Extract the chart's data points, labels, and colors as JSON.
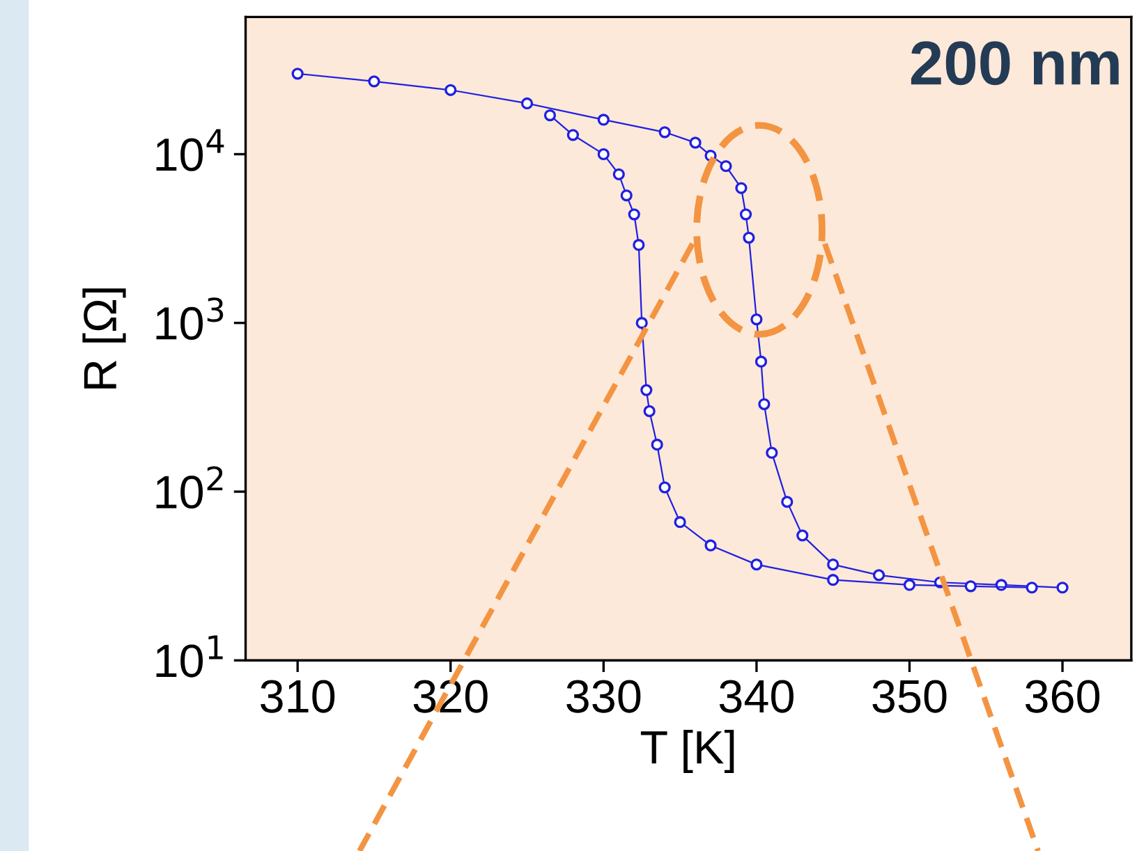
{
  "chart_data": {
    "type": "line",
    "xlabel": "T [K]",
    "ylabel": "R [Ω]",
    "annotations": [
      "200 nm"
    ],
    "log": "y",
    "xlim": [
      306.6,
      364.5
    ],
    "ylim": [
      10,
      65000
    ],
    "xticks": [
      310,
      320,
      330,
      340,
      350,
      360
    ],
    "yticks": [
      {
        "value": 10,
        "label": "10$^{1}$"
      },
      {
        "value": 100,
        "label": "10$^{2}$"
      },
      {
        "value": 1000,
        "label": "10$^{3}$"
      },
      {
        "value": 10000,
        "label": "10$^{4}$"
      }
    ],
    "marker": "circle",
    "line_style": "solid",
    "grid": false,
    "legend": false,
    "series": [
      {
        "color": "#2020e0",
        "x": [
          310,
          315,
          320,
          325,
          330,
          334,
          336,
          337,
          338,
          339,
          339.3,
          339.5,
          340,
          340.3,
          340.5,
          341,
          342,
          343,
          345,
          348,
          352,
          356,
          360
        ],
        "values": [
          30000,
          27000,
          24000,
          20000,
          16000,
          13500,
          11700,
          9800,
          8500,
          6300,
          4400,
          3200,
          1050,
          590,
          330,
          170,
          87,
          55,
          37,
          32,
          29,
          28,
          27
        ]
      },
      {
        "color": "#2020e0",
        "x": [
          358,
          354,
          350,
          345,
          340,
          337,
          335,
          334,
          333.5,
          333,
          332.8,
          332.5,
          332.3,
          332,
          331.5,
          331,
          330,
          328,
          326.5
        ],
        "values": [
          27,
          27.5,
          28,
          30,
          37,
          48,
          66,
          106,
          190,
          300,
          400,
          1000,
          2900,
          4400,
          5700,
          7600,
          10000,
          13000,
          17000
        ]
      }
    ]
  }
}
